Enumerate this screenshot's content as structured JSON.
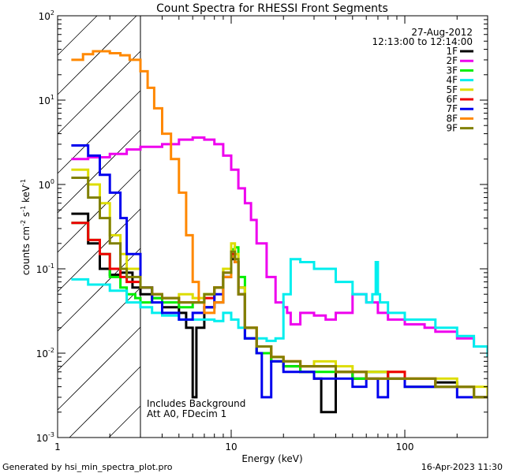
{
  "chart_data": {
    "type": "line",
    "title": "Count Spectra for RHESSI Front Segments",
    "xlabel": "Energy (keV)",
    "ylabel_parts": [
      "counts cm",
      "-2",
      " s",
      "-1",
      " keV",
      "-1"
    ],
    "xscale": "log",
    "yscale": "log",
    "xlim": [
      1,
      300
    ],
    "ylim": [
      0.001,
      100
    ],
    "x_tick_labels": [
      "1",
      "10",
      "100"
    ],
    "y_tick_labels": [
      {
        "base": "10",
        "exp": "-3"
      },
      {
        "base": "10",
        "exp": "-2"
      },
      {
        "base": "10",
        "exp": "-1"
      },
      {
        "base": "10",
        "exp": "0"
      },
      {
        "base": "10",
        "exp": "1"
      },
      {
        "base": "10",
        "exp": "2"
      }
    ],
    "hatched_region_keV": [
      1,
      3
    ],
    "date": "27-Aug-2012",
    "time_range": "12:13:00 to 12:14:00",
    "annotations": [
      "Includes Background",
      "Att A0, FDecim 1"
    ],
    "legend_position": "top-right",
    "series": [
      {
        "name": "1F",
        "color": "#000000",
        "x": [
          1.2,
          1.5,
          1.75,
          2.0,
          2.3,
          2.7,
          3.0,
          3.5,
          4.0,
          5.0,
          5.5,
          6.0,
          6.3,
          7,
          8,
          9,
          10,
          10.5,
          11,
          12,
          14,
          17,
          20,
          25,
          30,
          33,
          40,
          50,
          60,
          80,
          100,
          150,
          200,
          250,
          300
        ],
        "y": [
          0.45,
          0.2,
          0.1,
          0.085,
          0.09,
          0.06,
          0.05,
          0.045,
          0.035,
          0.03,
          0.02,
          0.003,
          0.02,
          0.035,
          0.04,
          0.08,
          0.13,
          0.12,
          0.06,
          0.015,
          0.01,
          0.008,
          0.007,
          0.006,
          0.005,
          0.002,
          0.006,
          0.005,
          0.006,
          0.005,
          0.004,
          0.0045,
          0.004,
          0.003,
          0.003
        ]
      },
      {
        "name": "2F",
        "color": "#ee00ee",
        "x": [
          1.2,
          1.5,
          2,
          2.5,
          3,
          4,
          5,
          6,
          7,
          8,
          9,
          10,
          11,
          12,
          13,
          14,
          16,
          18,
          20,
          21,
          22,
          25,
          30,
          35,
          40,
          50,
          60,
          70,
          80,
          100,
          130,
          150,
          200,
          250,
          300
        ],
        "y": [
          2.0,
          2.1,
          2.3,
          2.6,
          2.8,
          3.0,
          3.4,
          3.6,
          3.4,
          3.0,
          2.2,
          1.5,
          0.9,
          0.6,
          0.38,
          0.2,
          0.08,
          0.04,
          0.035,
          0.03,
          0.022,
          0.03,
          0.028,
          0.025,
          0.03,
          0.05,
          0.04,
          0.03,
          0.025,
          0.022,
          0.02,
          0.018,
          0.015,
          0.012,
          0.012
        ]
      },
      {
        "name": "3F",
        "color": "#00ee00",
        "x": [
          1.2,
          1.5,
          1.75,
          2.0,
          2.3,
          2.5,
          2.8,
          3.0,
          3.5,
          4.0,
          5.0,
          6.0,
          7,
          8,
          9,
          10,
          10.5,
          11,
          12,
          14,
          17,
          20,
          25,
          30,
          40,
          50,
          60,
          80,
          100,
          150,
          200,
          250,
          300
        ],
        "y": [
          0.35,
          0.22,
          0.15,
          0.08,
          0.06,
          0.05,
          0.045,
          0.04,
          0.045,
          0.04,
          0.035,
          0.04,
          0.05,
          0.06,
          0.1,
          0.17,
          0.18,
          0.08,
          0.02,
          0.01,
          0.008,
          0.007,
          0.006,
          0.006,
          0.006,
          0.005,
          0.006,
          0.005,
          0.004,
          0.004,
          0.004,
          0.003,
          0.003
        ]
      },
      {
        "name": "4F",
        "color": "#00eeee",
        "x": [
          1.2,
          1.5,
          2.0,
          2.5,
          3.0,
          3.5,
          4.0,
          5.0,
          6.0,
          7.0,
          8.0,
          9.0,
          10.0,
          11.0,
          12.0,
          14.0,
          16.0,
          18.0,
          20.0,
          22.0,
          25.0,
          30.0,
          40.0,
          50.0,
          60.0,
          65.0,
          68.0,
          70.0,
          72.0,
          80.0,
          100.0,
          150.0,
          200.0,
          250.0,
          300.0
        ],
        "y": [
          0.075,
          0.065,
          0.055,
          0.04,
          0.035,
          0.03,
          0.028,
          0.025,
          0.025,
          0.025,
          0.024,
          0.03,
          0.025,
          0.02,
          0.015,
          0.015,
          0.014,
          0.015,
          0.05,
          0.13,
          0.12,
          0.1,
          0.07,
          0.05,
          0.04,
          0.05,
          0.12,
          0.05,
          0.04,
          0.03,
          0.025,
          0.02,
          0.016,
          0.012,
          0.009
        ]
      },
      {
        "name": "5F",
        "color": "#dddd00",
        "x": [
          1.2,
          1.5,
          1.75,
          2.0,
          2.3,
          2.5,
          3.0,
          3.5,
          4.0,
          5.0,
          6.0,
          7,
          8,
          9,
          10,
          10.5,
          11,
          12,
          14,
          17,
          20,
          25,
          30,
          40,
          50,
          60,
          80,
          100,
          150,
          200,
          250,
          300
        ],
        "y": [
          1.5,
          1.0,
          0.6,
          0.25,
          0.15,
          0.1,
          0.06,
          0.05,
          0.045,
          0.05,
          0.045,
          0.05,
          0.06,
          0.1,
          0.2,
          0.15,
          0.06,
          0.02,
          0.012,
          0.009,
          0.008,
          0.007,
          0.008,
          0.007,
          0.006,
          0.006,
          0.006,
          0.005,
          0.005,
          0.004,
          0.004,
          0.003
        ]
      },
      {
        "name": "6F",
        "color": "#ee0000",
        "x": [
          1.2,
          1.5,
          1.75,
          2.0,
          2.3,
          2.5,
          3.0,
          3.5,
          4.0,
          5.0,
          6.0,
          7,
          8,
          9,
          10,
          10.5,
          11,
          12,
          14,
          17,
          20,
          25,
          30,
          40,
          50,
          60,
          80,
          100,
          150,
          200,
          250,
          300
        ],
        "y": [
          0.35,
          0.22,
          0.15,
          0.1,
          0.08,
          0.07,
          0.06,
          0.05,
          0.045,
          0.04,
          0.04,
          0.045,
          0.06,
          0.09,
          0.15,
          0.12,
          0.05,
          0.02,
          0.012,
          0.009,
          0.008,
          0.007,
          0.007,
          0.006,
          0.006,
          0.005,
          0.006,
          0.005,
          0.004,
          0.004,
          0.003,
          0.003
        ]
      },
      {
        "name": "7F",
        "color": "#0000ee",
        "x": [
          1.2,
          1.5,
          1.75,
          2.0,
          2.3,
          2.5,
          3.0,
          3.5,
          4.0,
          5.0,
          6.0,
          7,
          8,
          9,
          10,
          10.5,
          11,
          12,
          14,
          15,
          17,
          20,
          25,
          30,
          40,
          50,
          60,
          70,
          80,
          100,
          150,
          200,
          250,
          300
        ],
        "y": [
          2.9,
          2.2,
          1.3,
          0.8,
          0.4,
          0.15,
          0.06,
          0.04,
          0.03,
          0.025,
          0.03,
          0.035,
          0.05,
          0.08,
          0.14,
          0.12,
          0.05,
          0.015,
          0.01,
          0.003,
          0.008,
          0.006,
          0.006,
          0.005,
          0.005,
          0.004,
          0.005,
          0.003,
          0.005,
          0.004,
          0.004,
          0.003,
          0.003,
          0.003
        ]
      },
      {
        "name": "8F",
        "color": "#ff8800",
        "x": [
          1.2,
          1.4,
          1.6,
          1.8,
          2.0,
          2.3,
          2.6,
          3.0,
          3.3,
          3.6,
          4.0,
          4.5,
          5.0,
          5.5,
          6.0,
          6.5,
          7,
          8,
          9,
          10,
          10.5,
          11,
          12,
          14,
          17,
          20,
          25,
          30,
          40,
          50,
          60,
          80,
          100,
          150,
          200,
          250,
          300
        ],
        "y": [
          30,
          35,
          38,
          38,
          36,
          34,
          30,
          22,
          14,
          8,
          4,
          2.0,
          0.8,
          0.25,
          0.07,
          0.04,
          0.03,
          0.04,
          0.08,
          0.14,
          0.12,
          0.05,
          0.02,
          0.012,
          0.009,
          0.008,
          0.007,
          0.007,
          0.006,
          0.006,
          0.005,
          0.005,
          0.005,
          0.004,
          0.004,
          0.003,
          0.003
        ]
      },
      {
        "name": "9F",
        "color": "#808000",
        "x": [
          1.2,
          1.5,
          1.75,
          2.0,
          2.3,
          2.5,
          3.0,
          3.5,
          4.0,
          5.0,
          6.0,
          7,
          8,
          9,
          10,
          10.5,
          11,
          12,
          14,
          17,
          20,
          25,
          30,
          40,
          50,
          60,
          80,
          100,
          150,
          200,
          250,
          300
        ],
        "y": [
          1.2,
          0.7,
          0.4,
          0.2,
          0.1,
          0.08,
          0.06,
          0.05,
          0.045,
          0.04,
          0.04,
          0.05,
          0.06,
          0.09,
          0.16,
          0.13,
          0.05,
          0.02,
          0.012,
          0.009,
          0.008,
          0.007,
          0.007,
          0.006,
          0.006,
          0.005,
          0.005,
          0.005,
          0.004,
          0.004,
          0.003,
          0.003
        ]
      }
    ]
  },
  "footer": {
    "generated_by": "Generated by hsi_min_spectra_plot.pro",
    "timestamp": "16-Apr-2023 11:30"
  }
}
